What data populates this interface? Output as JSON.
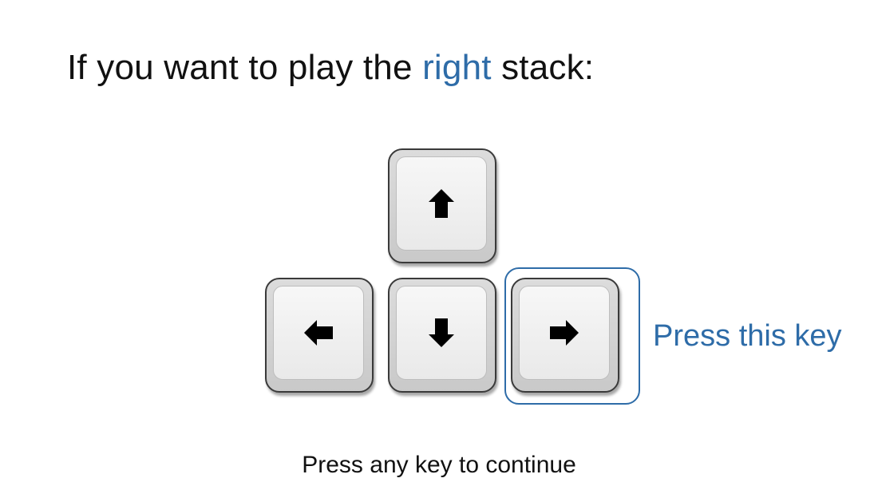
{
  "instruction": {
    "prefix": "If you want to play the",
    "highlight_word": "right",
    "suffix": "stack:"
  },
  "keys": {
    "up": {
      "icon": "arrow-up-icon"
    },
    "left": {
      "icon": "arrow-left-icon"
    },
    "down": {
      "icon": "arrow-down-icon"
    },
    "right": {
      "icon": "arrow-right-icon"
    }
  },
  "highlighted_key": "right",
  "callout": "Press this key",
  "footer": "Press any key to continue",
  "colors": {
    "accent": "#2e6ca8",
    "text": "#111111",
    "background": "#ffffff"
  }
}
